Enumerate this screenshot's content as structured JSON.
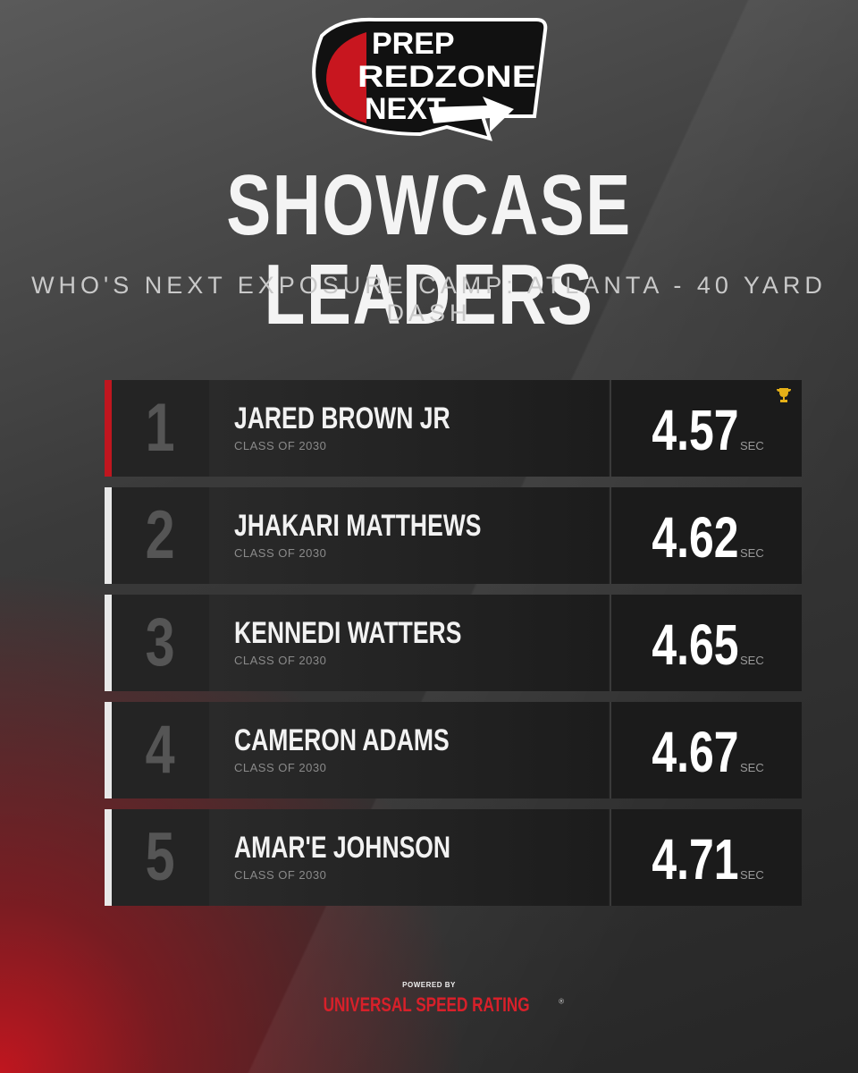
{
  "logo": {
    "line1": "PREP",
    "line2": "REDZONE",
    "line3": "NEXT"
  },
  "header": {
    "title": "SHOWCASE LEADERS",
    "subtitle": "WHO'S NEXT EXPOSURE CAMP: ATLANTA - 40 YARD DASH"
  },
  "table": {
    "rows": [
      {
        "rank": 1,
        "name": "JARED BROWN JR",
        "class": "CLASS OF 2030",
        "time": 4.57,
        "unit": "SEC"
      },
      {
        "rank": 2,
        "name": "JHAKARI MATTHEWS",
        "class": "CLASS OF 2030",
        "time": 4.62,
        "unit": "SEC"
      },
      {
        "rank": 3,
        "name": "KENNEDI WATTERS",
        "class": "CLASS OF 2030",
        "time": 4.65,
        "unit": "SEC"
      },
      {
        "rank": 4,
        "name": "CAMERON ADAMS",
        "class": "CLASS OF 2030",
        "time": 4.67,
        "unit": "SEC"
      },
      {
        "rank": 5,
        "name": "AMAR'E JOHNSON",
        "class": "CLASS OF 2030",
        "time": 4.71,
        "unit": "SEC"
      }
    ]
  },
  "footer": {
    "powered": "POWERED BY",
    "brand": "UNIVERSAL SPEED RATING",
    "mark": "®"
  }
}
